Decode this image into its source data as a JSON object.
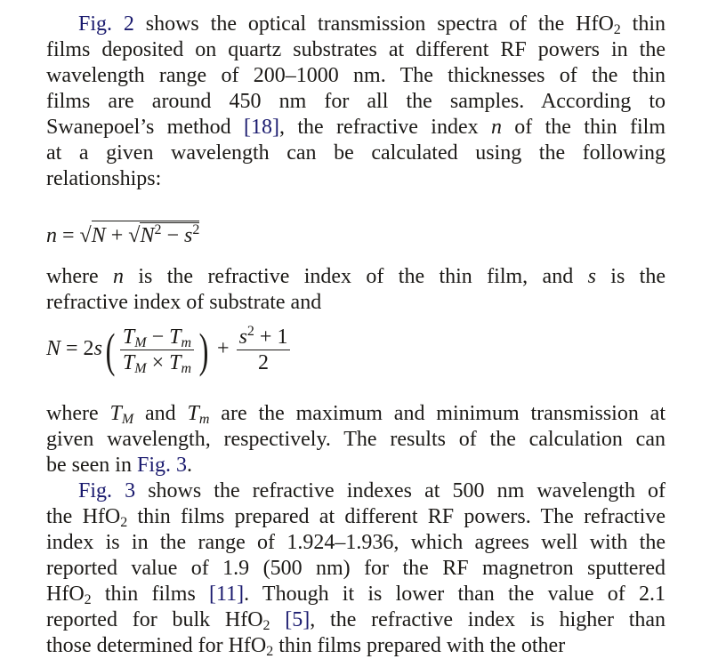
{
  "paragraph1": {
    "lines": [
      [
        {
          "t": "Fig. 2",
          "link": true
        },
        {
          "t": " shows the optical transmission spectra of the HfO"
        },
        {
          "t": "2",
          "sub": true
        },
        {
          "t": " thin"
        }
      ],
      [
        {
          "t": "films deposited on quartz substrates at different RF powers in the"
        }
      ],
      [
        {
          "t": "wavelength range of 200–1000 nm. The thicknesses of the thin"
        }
      ],
      [
        {
          "t": "films are around 450 nm for all the samples. According to"
        }
      ],
      [
        {
          "t": "Swanepoel’s method "
        },
        {
          "t": "[18]",
          "link": true
        },
        {
          "t": ", the refractive index "
        },
        {
          "t": "n",
          "it": true
        },
        {
          "t": " of the thin film"
        }
      ],
      [
        {
          "t": "at a given wavelength can be calculated using the following"
        }
      ],
      [
        {
          "t": "relationships:"
        }
      ]
    ]
  },
  "equation1": {
    "lhs": "n",
    "eq": " = ",
    "N": "N",
    "plus": " + ",
    "N2": "N",
    "sq": "2",
    "minus": " − ",
    "s": "s",
    "s2": "2"
  },
  "paragraph2": {
    "lines": [
      [
        {
          "t": "where "
        },
        {
          "t": "n",
          "it": true
        },
        {
          "t": " is the refractive index of the thin film, and "
        },
        {
          "t": "s",
          "it": true
        },
        {
          "t": " is the"
        }
      ],
      [
        {
          "t": "refractive index of substrate and"
        }
      ]
    ]
  },
  "equation2": {
    "lhs": "N",
    "eq": " = 2",
    "s": "s",
    "TM": "T",
    "M": "M",
    "minus": " − ",
    "Tm": "T",
    "m": "m",
    "times": " × ",
    "plus": " + ",
    "s2num": "s",
    "sq": "2",
    "plus1": " + 1",
    "den": "2"
  },
  "paragraph3": {
    "lines": [
      [
        {
          "t": "where "
        },
        {
          "t": "T",
          "it": true
        },
        {
          "t": "M",
          "it": true,
          "sub": true
        },
        {
          "t": " and "
        },
        {
          "t": "T",
          "it": true
        },
        {
          "t": "m",
          "it": true,
          "sub": true
        },
        {
          "t": " are the maximum and minimum transmission at"
        }
      ],
      [
        {
          "t": "given wavelength, respectively. The results of the calculation can"
        }
      ],
      [
        {
          "t": "be seen in "
        },
        {
          "t": "Fig. 3",
          "link": true
        },
        {
          "t": "."
        }
      ]
    ]
  },
  "paragraph4": {
    "lines": [
      [
        {
          "t": "Fig. 3",
          "link": true
        },
        {
          "t": " shows the refractive indexes at 500 nm wavelength of"
        }
      ],
      [
        {
          "t": "the HfO"
        },
        {
          "t": "2",
          "sub": true
        },
        {
          "t": " thin films prepared at different RF powers. The refractive"
        }
      ],
      [
        {
          "t": "index is in the range of 1.924–1.936, which agrees well with the"
        }
      ],
      [
        {
          "t": "reported value of 1.9 (500 nm) for the RF magnetron sputtered"
        }
      ],
      [
        {
          "t": "HfO"
        },
        {
          "t": "2",
          "sub": true
        },
        {
          "t": " thin films "
        },
        {
          "t": "[11]",
          "link": true
        },
        {
          "t": ". Though it is lower than the value of 2.1"
        }
      ],
      [
        {
          "t": "reported for bulk HfO"
        },
        {
          "t": "2",
          "sub": true
        },
        {
          "t": " "
        },
        {
          "t": "[5]",
          "link": true
        },
        {
          "t": ", the refractive index is higher than"
        }
      ],
      [
        {
          "t": "those determined for HfO"
        },
        {
          "t": "2",
          "sub": true
        },
        {
          "t": " thin films prepared with the other"
        }
      ]
    ]
  }
}
